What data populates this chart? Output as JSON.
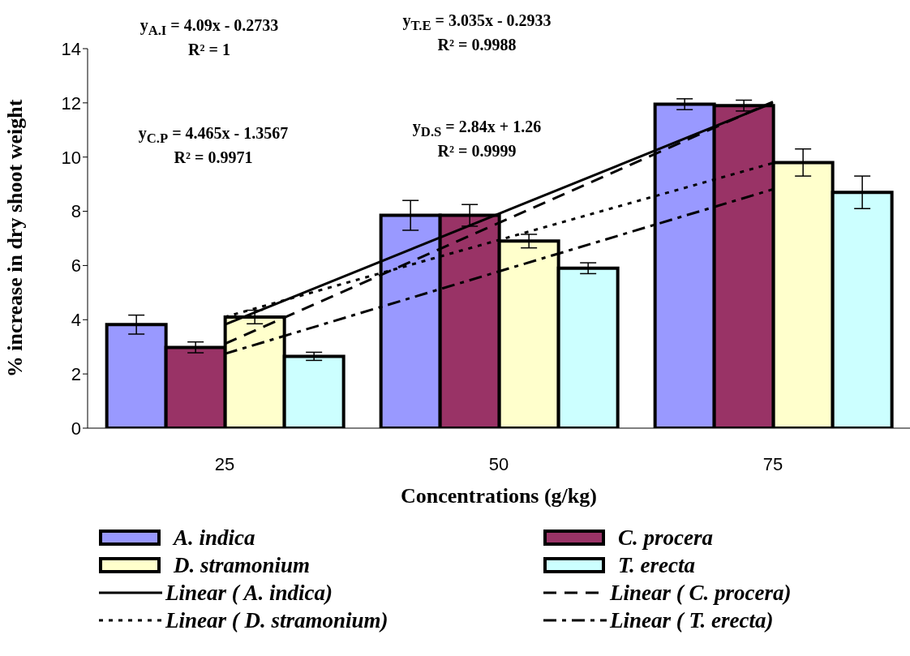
{
  "chart_data": {
    "type": "bar",
    "xlabel": "Concentrations (g/kg)",
    "ylabel": "% increase in dry shoot weight",
    "categories": [
      "25",
      "50",
      "75"
    ],
    "series": [
      {
        "name": "A. indica",
        "color": "#9999ff",
        "values": [
          3.82,
          7.85,
          11.95
        ],
        "errors": [
          0.35,
          0.55,
          0.2
        ]
      },
      {
        "name": "C. procera",
        "color": "#993366",
        "values": [
          2.98,
          7.85,
          11.9
        ],
        "errors": [
          0.2,
          0.4,
          0.2
        ]
      },
      {
        "name": "D. stramonium",
        "color": "#ffffcc",
        "values": [
          4.1,
          6.9,
          9.8
        ],
        "errors": [
          0.25,
          0.25,
          0.5
        ]
      },
      {
        "name": "T. erecta",
        "color": "#ccffff",
        "values": [
          2.65,
          5.9,
          8.7
        ],
        "errors": [
          0.15,
          0.2,
          0.6
        ]
      },
      {
        "type": "line",
        "name": "Linear ( A. indica)",
        "color": "#000000",
        "values": [
          3.82,
          7.91,
          12.0
        ],
        "line_style": "solid"
      },
      {
        "type": "line",
        "name": "Linear ( C. procera)",
        "color": "#000000",
        "values": [
          3.11,
          7.57,
          12.04
        ],
        "line_style": "dashed"
      },
      {
        "type": "line",
        "name": "Linear ( D. stramonium)",
        "color": "#000000",
        "values": [
          4.1,
          6.94,
          9.78
        ],
        "line_style": "dotted"
      },
      {
        "type": "line",
        "name": "Linear ( T. erecta)",
        "color": "#000000",
        "values": [
          2.74,
          5.78,
          8.81
        ],
        "line_style": "dashdot"
      }
    ],
    "ylim": [
      0,
      14
    ],
    "yticks": [
      0,
      2,
      4,
      6,
      8,
      10,
      12,
      14
    ],
    "legend": "bottom",
    "marker": "none",
    "annotations": [
      "y$_{A.I}$ = 4.09x - 0.2733",
      "R² = 1",
      "y$_{T.E}$ = 3.035x - 0.2933",
      "R² = 0.9988",
      "y$_{C.P}$ = 4.465x - 1.3567",
      "R² = 0.9971",
      "y$_{D.S}$ = 2.84x + 1.26",
      "R² = 0.9999"
    ]
  }
}
